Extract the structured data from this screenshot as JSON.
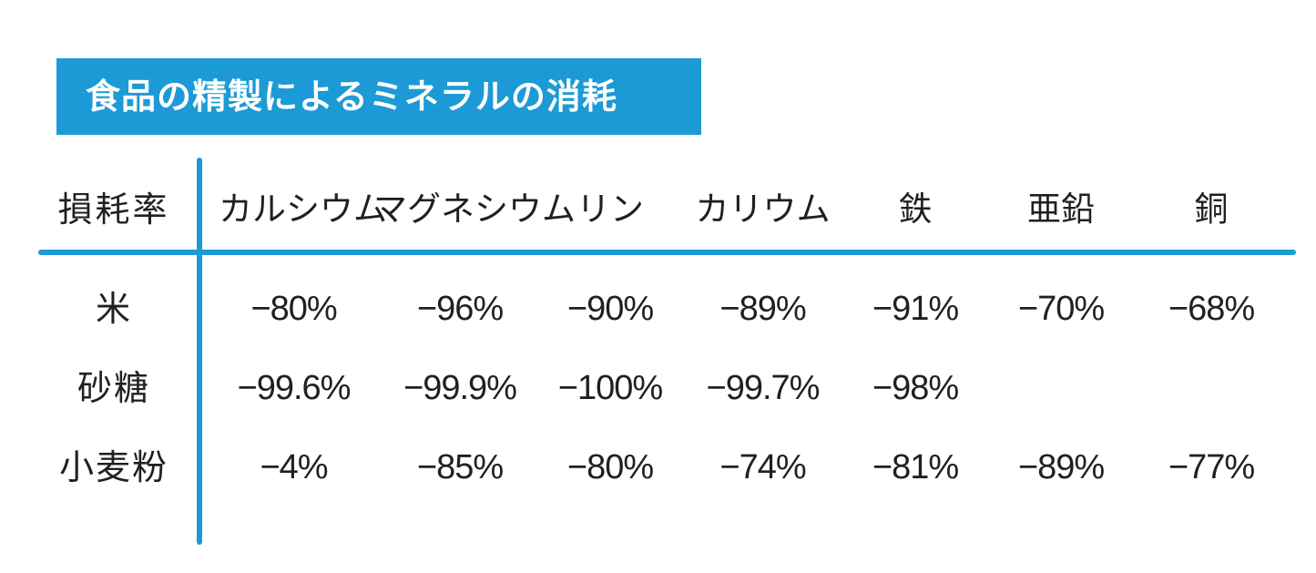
{
  "title": "食品の精製によるミネラルの消耗",
  "table": {
    "corner_label": "損耗率",
    "columns": [
      "カルシウム",
      "マグネシウム",
      "リン",
      "カリウム",
      "鉄",
      "亜鉛",
      "銅"
    ],
    "rows": [
      {
        "label": "米",
        "values": [
          "−80%",
          "−96%",
          "−90%",
          "−89%",
          "−91%",
          "−70%",
          "−68%"
        ]
      },
      {
        "label": "砂糖",
        "values": [
          "−99.6%",
          "−99.9%",
          "−100%",
          "−99.7%",
          "−98%",
          "",
          ""
        ]
      },
      {
        "label": "小麦粉",
        "values": [
          "−4%",
          "−85%",
          "−80%",
          "−74%",
          "−81%",
          "−89%",
          "−77%"
        ]
      }
    ]
  },
  "colors": {
    "accent": "#1c9ad6",
    "text": "#231f20",
    "title_text": "#ffffff"
  }
}
